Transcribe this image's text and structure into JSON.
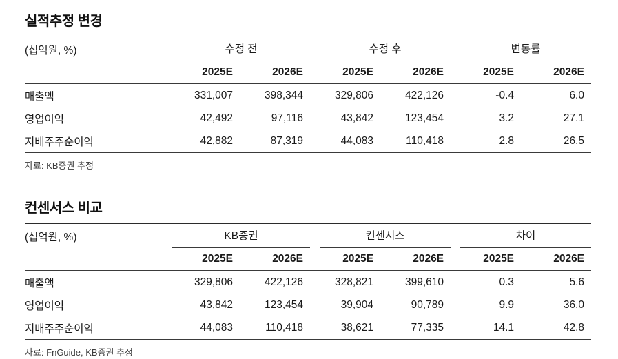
{
  "page": {
    "background": "#ffffff",
    "text_color": "#1a1a1a",
    "rule_color": "#3a3a3a"
  },
  "tables": [
    {
      "title": "실적추정 변경",
      "unit_label": "(십억원, %)",
      "col_groups": [
        "수정 전",
        "수정 후",
        "변동률"
      ],
      "sub_headers": [
        "2025E",
        "2026E",
        "2025E",
        "2026E",
        "2025E",
        "2026E"
      ],
      "rows": [
        {
          "label": "매출액",
          "values": [
            "331,007",
            "398,344",
            "329,806",
            "422,126",
            "-0.4",
            "6.0"
          ]
        },
        {
          "label": "영업이익",
          "values": [
            "42,492",
            "97,116",
            "43,842",
            "123,454",
            "3.2",
            "27.1"
          ]
        },
        {
          "label": "지배주주순이익",
          "values": [
            "42,882",
            "87,319",
            "44,083",
            "110,418",
            "2.8",
            "26.5"
          ]
        }
      ],
      "source": "자료: KB증권 추정"
    },
    {
      "title": "컨센서스 비교",
      "unit_label": "(십억원, %)",
      "col_groups": [
        "KB증권",
        "컨센서스",
        "차이"
      ],
      "sub_headers": [
        "2025E",
        "2026E",
        "2025E",
        "2026E",
        "2025E",
        "2026E"
      ],
      "rows": [
        {
          "label": "매출액",
          "values": [
            "329,806",
            "422,126",
            "328,821",
            "399,610",
            "0.3",
            "5.6"
          ]
        },
        {
          "label": "영업이익",
          "values": [
            "43,842",
            "123,454",
            "39,904",
            "90,789",
            "9.9",
            "36.0"
          ]
        },
        {
          "label": "지배주주순이익",
          "values": [
            "44,083",
            "110,418",
            "38,621",
            "77,335",
            "14.1",
            "42.8"
          ]
        }
      ],
      "source": "자료: FnGuide, KB증권 추정"
    }
  ]
}
